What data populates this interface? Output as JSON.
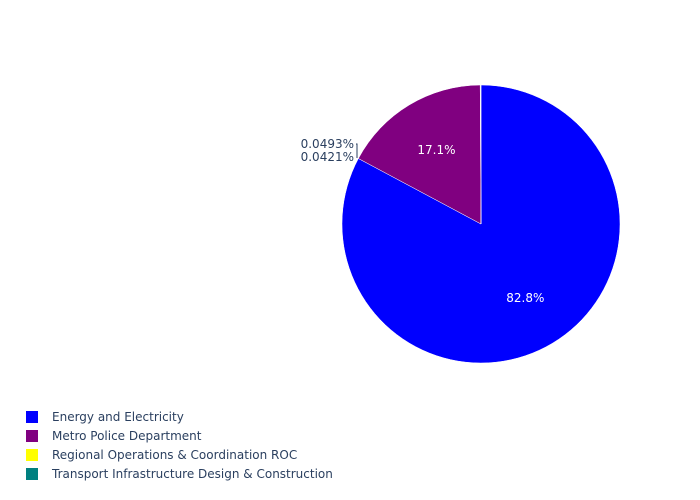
{
  "chart_data": {
    "type": "pie",
    "labels": [
      "Energy and Electricity",
      "Metro Police Department",
      "Regional Operations & Coordination ROC",
      "Transport Infrastructure Design & Construction"
    ],
    "values": [
      82.8,
      17.1,
      0.0493,
      0.0421
    ],
    "text_labels": [
      "82.8%",
      "17.1%",
      "0.0493%",
      "0.0421%"
    ],
    "colors": [
      "#0000ff",
      "#800080",
      "#ffff00",
      "#008080"
    ],
    "legend_placement": "bottom-left"
  }
}
